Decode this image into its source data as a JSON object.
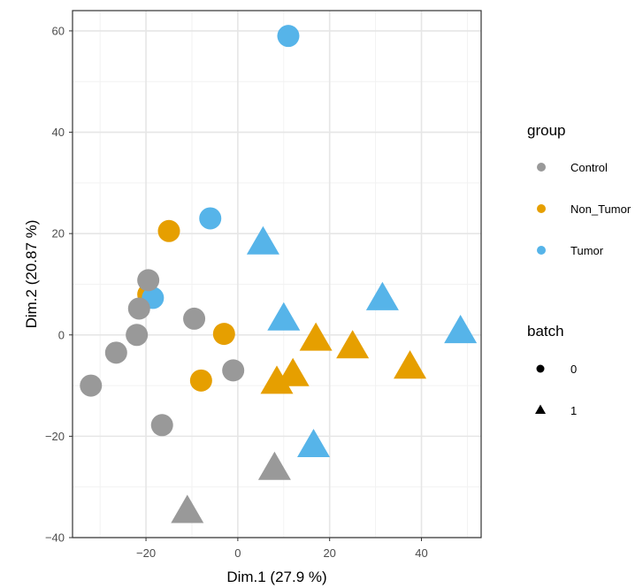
{
  "chart_data": {
    "type": "scatter",
    "title": "",
    "xlabel": "Dim.1 (27.9 %)",
    "ylabel": "Dim.2 (20.87 %)",
    "xlim": [
      -36,
      53
    ],
    "ylim": [
      -40,
      64
    ],
    "x_ticks": [
      -20,
      0,
      20,
      40
    ],
    "y_ticks": [
      -40,
      -20,
      0,
      20,
      40,
      60
    ],
    "x_tick_labels": [
      "−20",
      "0",
      "20",
      "40"
    ],
    "y_tick_labels": [
      "−40",
      "−20",
      "0",
      "20",
      "40",
      "60"
    ],
    "grid": true,
    "legend_position": "right",
    "group_legend": {
      "title": "group",
      "entries": [
        {
          "label": "Control",
          "color": "#999999"
        },
        {
          "label": "Non_Tumor",
          "color": "#E69F00"
        },
        {
          "label": "Tumor",
          "color": "#56B4E9"
        }
      ]
    },
    "batch_legend": {
      "title": "batch",
      "entries": [
        {
          "label": "0",
          "shape": "circle"
        },
        {
          "label": "1",
          "shape": "triangle"
        }
      ]
    },
    "points": [
      {
        "x": 11.0,
        "y": 59.0,
        "group": "Tumor",
        "batch": "0"
      },
      {
        "x": -6.0,
        "y": 23.0,
        "group": "Tumor",
        "batch": "0"
      },
      {
        "x": -15.0,
        "y": 20.5,
        "group": "Non_Tumor",
        "batch": "0"
      },
      {
        "x": -19.5,
        "y": 8.0,
        "group": "Non_Tumor",
        "batch": "0"
      },
      {
        "x": -18.5,
        "y": 7.3,
        "group": "Tumor",
        "batch": "0"
      },
      {
        "x": -19.5,
        "y": 10.8,
        "group": "Control",
        "batch": "0"
      },
      {
        "x": -21.5,
        "y": 5.2,
        "group": "Control",
        "batch": "0"
      },
      {
        "x": -22.0,
        "y": 0.0,
        "group": "Control",
        "batch": "0"
      },
      {
        "x": -9.5,
        "y": 3.2,
        "group": "Control",
        "batch": "0"
      },
      {
        "x": -3.0,
        "y": 0.2,
        "group": "Non_Tumor",
        "batch": "0"
      },
      {
        "x": -26.5,
        "y": -3.5,
        "group": "Control",
        "batch": "0"
      },
      {
        "x": -32.0,
        "y": -10.0,
        "group": "Control",
        "batch": "0"
      },
      {
        "x": -8.0,
        "y": -9.0,
        "group": "Non_Tumor",
        "batch": "0"
      },
      {
        "x": -1.0,
        "y": -7.0,
        "group": "Control",
        "batch": "0"
      },
      {
        "x": -16.5,
        "y": -17.8,
        "group": "Control",
        "batch": "0"
      },
      {
        "x": 5.5,
        "y": 18.0,
        "group": "Tumor",
        "batch": "1"
      },
      {
        "x": 10.0,
        "y": 3.0,
        "group": "Tumor",
        "batch": "1"
      },
      {
        "x": 31.5,
        "y": 7.0,
        "group": "Tumor",
        "batch": "1"
      },
      {
        "x": 48.5,
        "y": 0.5,
        "group": "Tumor",
        "batch": "1"
      },
      {
        "x": 17.0,
        "y": -1.0,
        "group": "Non_Tumor",
        "batch": "1"
      },
      {
        "x": 25.0,
        "y": -2.5,
        "group": "Non_Tumor",
        "batch": "1"
      },
      {
        "x": 37.5,
        "y": -6.5,
        "group": "Non_Tumor",
        "batch": "1"
      },
      {
        "x": 12.0,
        "y": -8.0,
        "group": "Non_Tumor",
        "batch": "1"
      },
      {
        "x": 8.5,
        "y": -9.5,
        "group": "Non_Tumor",
        "batch": "1"
      },
      {
        "x": 16.5,
        "y": -22.0,
        "group": "Tumor",
        "batch": "1"
      },
      {
        "x": 8.0,
        "y": -26.5,
        "group": "Control",
        "batch": "1"
      },
      {
        "x": -11.0,
        "y": -35.0,
        "group": "Control",
        "batch": "1"
      }
    ]
  }
}
